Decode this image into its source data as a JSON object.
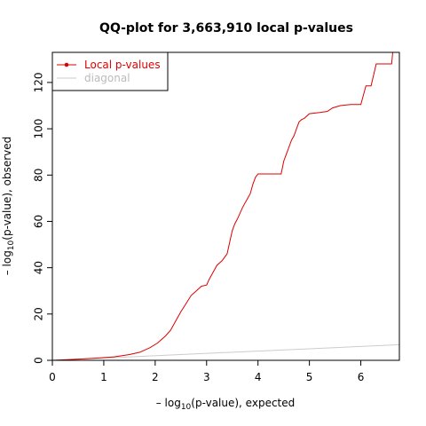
{
  "chart_data": {
    "type": "line",
    "title": "QQ-plot for 3,663,910 local p-values",
    "xlabel": {
      "prefix": "– log",
      "sub": "10",
      "suffix": "(p-value), expected"
    },
    "ylabel": {
      "prefix": "– log",
      "sub": "10",
      "suffix": "(p-value), observed"
    },
    "xlim": [
      0,
      6.75
    ],
    "ylim": [
      0,
      133
    ],
    "x_ticks": [
      0,
      1,
      2,
      3,
      4,
      5,
      6
    ],
    "y_ticks": [
      0,
      20,
      40,
      60,
      80,
      100,
      120
    ],
    "grid": false,
    "legend_position": "top-left",
    "series": [
      {
        "name": "Local p-values",
        "color": "#dd0000",
        "marker": "point",
        "x": [
          0,
          0.3,
          0.6,
          0.9,
          1.2,
          1.5,
          1.7,
          1.9,
          2.05,
          2.2,
          2.3,
          2.4,
          2.5,
          2.6,
          2.7,
          2.8,
          2.9,
          3.0,
          3.05,
          3.1,
          3.2,
          3.3,
          3.4,
          3.5,
          3.55,
          3.6,
          3.7,
          3.8,
          3.85,
          3.9,
          3.95,
          4.0,
          4.1,
          4.2,
          4.3,
          4.45,
          4.5,
          4.55,
          4.6,
          4.65,
          4.7,
          4.75,
          4.8,
          4.85,
          4.9,
          5.0,
          5.2,
          5.35,
          5.45,
          5.6,
          5.8,
          6.0,
          6.1,
          6.2,
          6.3,
          6.6,
          6.62
        ],
        "y": [
          0,
          0.3,
          0.6,
          1.0,
          1.5,
          2.5,
          3.5,
          5.5,
          7.5,
          10.5,
          13.0,
          17.0,
          21.0,
          24.5,
          28.0,
          30.0,
          32.0,
          32.5,
          35.0,
          37.0,
          41.0,
          43.0,
          46.0,
          56.0,
          59.0,
          61.0,
          66.0,
          70.0,
          72.0,
          76.0,
          79.0,
          80.5,
          80.5,
          80.5,
          80.5,
          80.5,
          86.0,
          89.0,
          92.0,
          95.0,
          97.0,
          100.0,
          103.0,
          104.0,
          104.5,
          106.5,
          107.0,
          107.5,
          109.0,
          110.0,
          110.5,
          110.5,
          118.5,
          118.5,
          128.0,
          128.0,
          133.0
        ]
      },
      {
        "name": "diagonal",
        "color": "#cccccc",
        "marker": "none",
        "x": [
          0,
          6.75
        ],
        "y": [
          0,
          6.75
        ]
      }
    ]
  }
}
